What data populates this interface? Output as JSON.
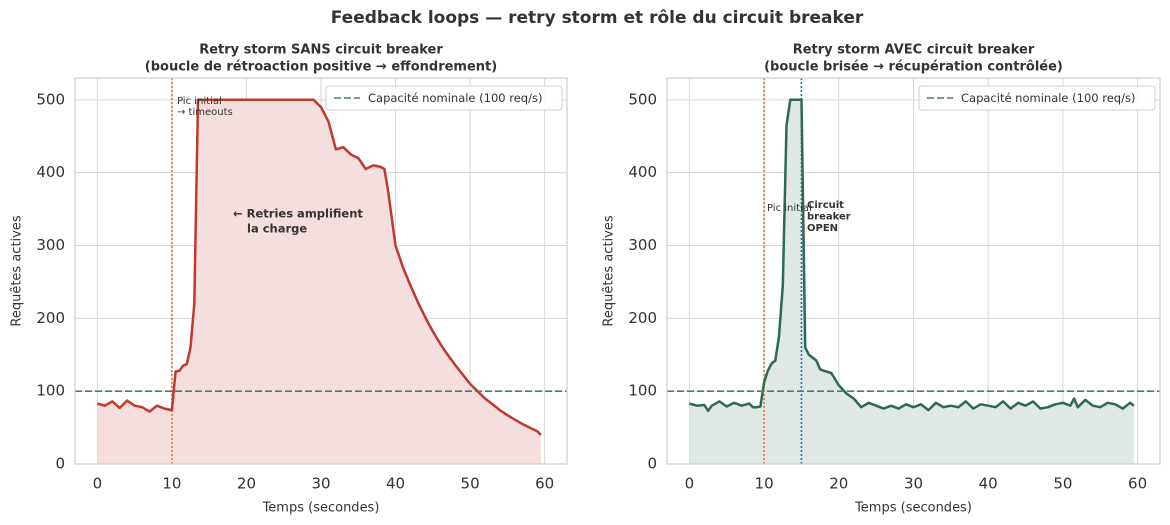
{
  "title": "Feedback loops — retry storm et rôle du circuit breaker",
  "chart_data": [
    {
      "type": "line",
      "title": [
        "Retry storm SANS circuit breaker",
        "(boucle de rétroaction positive → effondrement)"
      ],
      "x_label": "Temps (secondes)",
      "y_label": "Requêtes actives",
      "xlim": [
        -3,
        63
      ],
      "ylim": [
        0,
        530
      ],
      "xticks": [
        0,
        10,
        20,
        30,
        40,
        50,
        60
      ],
      "yticks": [
        0,
        100,
        200,
        300,
        400,
        500
      ],
      "grid": true,
      "legend": "upper right",
      "capacity": {
        "name": "Capacité nominale (100 req/s)",
        "value": 100,
        "color": "#4a7d6a"
      },
      "vlines": [
        {
          "x": 10,
          "color": "#d9773a"
        }
      ],
      "annotations": [
        {
          "text": [
            "Pic initial",
            "→ timeouts"
          ],
          "color": "#d9773a"
        },
        {
          "text": [
            "← Retries amplifient",
            "la charge"
          ],
          "color": "#c0392b"
        }
      ],
      "series": [
        {
          "name": "Requêtes actives",
          "color": "#c0392b",
          "fill": "#f5dede",
          "x": [
            0,
            1,
            2,
            3,
            4,
            5,
            6,
            7,
            8,
            9,
            10,
            10.5,
            11,
            11.5,
            12,
            12.5,
            13,
            13.5,
            14,
            15,
            16,
            17,
            18,
            19,
            20,
            21,
            22,
            23,
            24,
            25,
            26,
            27,
            28,
            29,
            30,
            31,
            32,
            33,
            34,
            35,
            36,
            37,
            38,
            38.5,
            39,
            40,
            41,
            42,
            43,
            44,
            45,
            46,
            47,
            48,
            49,
            50,
            51,
            52,
            53,
            54,
            55,
            56,
            57,
            58,
            59,
            59.5
          ],
          "values": [
            83,
            80,
            86,
            77,
            87,
            80,
            78,
            72,
            80,
            76,
            74,
            127,
            128,
            135,
            137,
            160,
            220,
            500,
            500,
            500,
            500,
            500,
            500,
            500,
            500,
            500,
            500,
            500,
            500,
            500,
            500,
            500,
            500,
            500,
            490,
            470,
            432,
            435,
            425,
            420,
            405,
            410,
            408,
            405,
            375,
            300,
            270,
            245,
            222,
            201,
            182,
            165,
            150,
            136,
            123,
            110,
            100,
            90,
            82,
            74,
            67,
            61,
            55,
            50,
            45,
            40
          ]
        }
      ]
    },
    {
      "type": "line",
      "title": [
        "Retry storm AVEC circuit breaker",
        "(boucle brisée → récupération contrôlée)"
      ],
      "x_label": "Temps (secondes)",
      "y_label": "Requêtes actives",
      "xlim": [
        -3,
        63
      ],
      "ylim": [
        0,
        530
      ],
      "xticks": [
        0,
        10,
        20,
        30,
        40,
        50,
        60
      ],
      "yticks": [
        0,
        100,
        200,
        300,
        400,
        500
      ],
      "grid": true,
      "legend": "upper right",
      "capacity": {
        "name": "Capacité nominale (100 req/s)",
        "value": 100,
        "color": "#4a7d6a"
      },
      "vlines": [
        {
          "x": 10,
          "color": "#d9773a"
        },
        {
          "x": 15,
          "color": "#1f6fb5"
        }
      ],
      "annotations": [
        {
          "text": [
            "Pic initial"
          ],
          "color": "#d9773a"
        },
        {
          "text": [
            "Circuit",
            "breaker",
            "OPEN"
          ],
          "color": "#1f6fb5"
        }
      ],
      "series": [
        {
          "name": "Requêtes actives",
          "color": "#2d6a4f",
          "fill": "#dfe8e4",
          "x": [
            0,
            1,
            2,
            2.5,
            3,
            4,
            5,
            6,
            7,
            8,
            8.5,
            9,
            9.5,
            10,
            10.5,
            11,
            11.5,
            12,
            12.5,
            13,
            13.5,
            14,
            14.5,
            15,
            15.5,
            16,
            17,
            17.5,
            18,
            19,
            20,
            21,
            22,
            23,
            24,
            25,
            26,
            27,
            28,
            29,
            30,
            31,
            32,
            33,
            34,
            35,
            36,
            37,
            38,
            39,
            40,
            41,
            42,
            43,
            44,
            45,
            46,
            47,
            48,
            49,
            50,
            51,
            51.5,
            52,
            53,
            54,
            55,
            56,
            57,
            58,
            59,
            59.5
          ],
          "values": [
            83,
            80,
            81,
            73,
            80,
            86,
            79,
            84,
            80,
            83,
            78,
            78,
            79,
            112,
            128,
            138,
            142,
            175,
            245,
            465,
            500,
            500,
            500,
            500,
            160,
            150,
            142,
            130,
            128,
            125,
            108,
            97,
            90,
            78,
            84,
            80,
            76,
            80,
            76,
            82,
            78,
            82,
            74,
            84,
            78,
            80,
            78,
            86,
            76,
            82,
            80,
            78,
            86,
            76,
            84,
            80,
            86,
            76,
            78,
            82,
            84,
            80,
            90,
            78,
            88,
            80,
            78,
            84,
            82,
            76,
            84,
            80
          ]
        }
      ]
    }
  ]
}
